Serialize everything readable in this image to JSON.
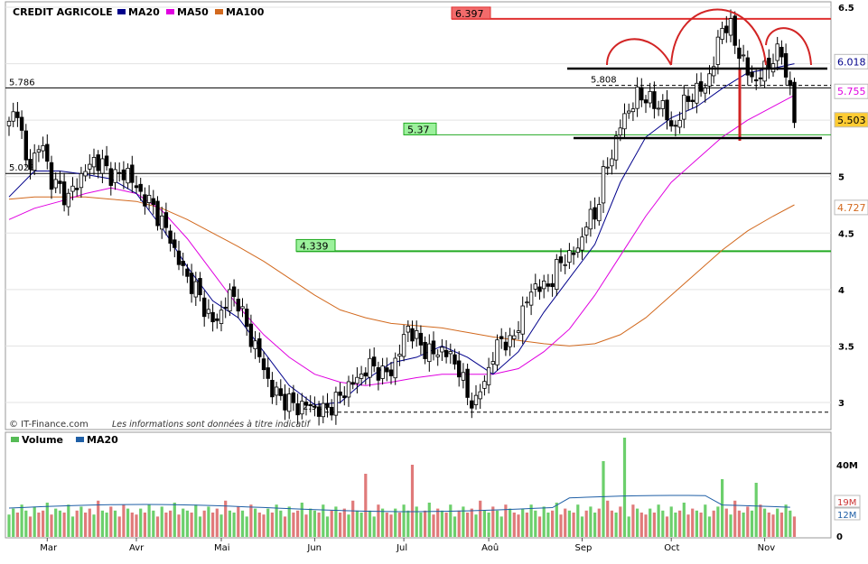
{
  "chart_data": {
    "type": "candlestick",
    "title": "CREDIT AGRICOLE",
    "legend": [
      {
        "label": "MA20",
        "color": "#00008b"
      },
      {
        "label": "MA50",
        "color": "#e000e0"
      },
      {
        "label": "MA100",
        "color": "#d2691e"
      }
    ],
    "price_axis": {
      "min": 2.85,
      "max": 6.5,
      "ticks": [
        "6.5",
        "6",
        "5.5",
        "5",
        "4.5",
        "4",
        "3.5",
        "3"
      ]
    },
    "months": [
      {
        "label": "Mar",
        "t": 9
      },
      {
        "label": "Avr",
        "t": 30
      },
      {
        "label": "Mai",
        "t": 50
      },
      {
        "label": "Jun",
        "t": 72
      },
      {
        "label": "Jul",
        "t": 93
      },
      {
        "label": "Aoû",
        "t": 113
      },
      {
        "label": "Sep",
        "t": 135
      },
      {
        "label": "Oct",
        "t": 156
      },
      {
        "label": "Nov",
        "t": 178
      }
    ],
    "close_points": [
      [
        0,
        5.45
      ],
      [
        2,
        5.62
      ],
      [
        4,
        5.1
      ],
      [
        6,
        5.18
      ],
      [
        8,
        5.28
      ],
      [
        10,
        4.95
      ],
      [
        12,
        4.9
      ],
      [
        14,
        4.8
      ],
      [
        16,
        4.95
      ],
      [
        18,
        5.05
      ],
      [
        20,
        5.15
      ],
      [
        22,
        5.1
      ],
      [
        24,
        5.02
      ],
      [
        26,
        5.0
      ],
      [
        28,
        5.05
      ],
      [
        30,
        4.88
      ],
      [
        32,
        4.82
      ],
      [
        34,
        4.72
      ],
      [
        36,
        4.6
      ],
      [
        38,
        4.45
      ],
      [
        40,
        4.25
      ],
      [
        42,
        4.1
      ],
      [
        44,
        4.0
      ],
      [
        46,
        3.85
      ],
      [
        48,
        3.7
      ],
      [
        50,
        3.8
      ],
      [
        52,
        3.95
      ],
      [
        54,
        3.9
      ],
      [
        56,
        3.65
      ],
      [
        58,
        3.5
      ],
      [
        60,
        3.3
      ],
      [
        62,
        3.1
      ],
      [
        64,
        3.05
      ],
      [
        66,
        3.0
      ],
      [
        68,
        2.96
      ],
      [
        70,
        2.98
      ],
      [
        72,
        2.95
      ],
      [
        74,
        2.92
      ],
      [
        76,
        2.98
      ],
      [
        78,
        3.05
      ],
      [
        80,
        3.15
      ],
      [
        82,
        3.2
      ],
      [
        84,
        3.3
      ],
      [
        86,
        3.32
      ],
      [
        88,
        3.25
      ],
      [
        90,
        3.28
      ],
      [
        92,
        3.45
      ],
      [
        94,
        3.68
      ],
      [
        96,
        3.55
      ],
      [
        98,
        3.47
      ],
      [
        100,
        3.43
      ],
      [
        102,
        3.47
      ],
      [
        104,
        3.4
      ],
      [
        106,
        3.3
      ],
      [
        108,
        3.05
      ],
      [
        110,
        3.0
      ],
      [
        112,
        3.2
      ],
      [
        114,
        3.4
      ],
      [
        116,
        3.58
      ],
      [
        118,
        3.5
      ],
      [
        120,
        3.7
      ],
      [
        122,
        3.9
      ],
      [
        124,
        4.05
      ],
      [
        126,
        4.0
      ],
      [
        128,
        4.1
      ],
      [
        130,
        4.25
      ],
      [
        132,
        4.3
      ],
      [
        134,
        4.35
      ],
      [
        136,
        4.6
      ],
      [
        138,
        4.65
      ],
      [
        140,
        5.0
      ],
      [
        142,
        5.2
      ],
      [
        144,
        5.45
      ],
      [
        146,
        5.6
      ],
      [
        148,
        5.7
      ],
      [
        150,
        5.72
      ],
      [
        152,
        5.62
      ],
      [
        154,
        5.65
      ],
      [
        156,
        5.4
      ],
      [
        158,
        5.55
      ],
      [
        160,
        5.7
      ],
      [
        162,
        5.75
      ],
      [
        164,
        5.8
      ],
      [
        166,
        6.0
      ],
      [
        168,
        6.35
      ],
      [
        170,
        6.3
      ],
      [
        172,
        6.1
      ],
      [
        174,
        5.92
      ],
      [
        176,
        5.85
      ],
      [
        178,
        5.95
      ],
      [
        180,
        6.05
      ],
      [
        182,
        6.1
      ],
      [
        184,
        5.75
      ],
      [
        185,
        5.5
      ]
    ],
    "ma20_points": [
      [
        0,
        4.82
      ],
      [
        6,
        5.05
      ],
      [
        12,
        5.05
      ],
      [
        18,
        5.02
      ],
      [
        24,
        4.98
      ],
      [
        30,
        4.85
      ],
      [
        36,
        4.55
      ],
      [
        42,
        4.2
      ],
      [
        48,
        3.9
      ],
      [
        54,
        3.75
      ],
      [
        60,
        3.45
      ],
      [
        66,
        3.15
      ],
      [
        72,
        2.98
      ],
      [
        78,
        3.0
      ],
      [
        84,
        3.2
      ],
      [
        90,
        3.35
      ],
      [
        96,
        3.4
      ],
      [
        102,
        3.5
      ],
      [
        108,
        3.4
      ],
      [
        114,
        3.25
      ],
      [
        120,
        3.45
      ],
      [
        126,
        3.8
      ],
      [
        132,
        4.1
      ],
      [
        138,
        4.4
      ],
      [
        144,
        4.95
      ],
      [
        150,
        5.35
      ],
      [
        156,
        5.52
      ],
      [
        162,
        5.62
      ],
      [
        168,
        5.78
      ],
      [
        174,
        5.92
      ],
      [
        180,
        5.96
      ],
      [
        185,
        6.0
      ]
    ],
    "ma50_points": [
      [
        0,
        4.62
      ],
      [
        6,
        4.72
      ],
      [
        12,
        4.78
      ],
      [
        18,
        4.85
      ],
      [
        24,
        4.9
      ],
      [
        30,
        4.85
      ],
      [
        36,
        4.7
      ],
      [
        42,
        4.45
      ],
      [
        48,
        4.15
      ],
      [
        54,
        3.85
      ],
      [
        60,
        3.6
      ],
      [
        66,
        3.4
      ],
      [
        72,
        3.25
      ],
      [
        78,
        3.18
      ],
      [
        84,
        3.15
      ],
      [
        90,
        3.18
      ],
      [
        96,
        3.22
      ],
      [
        102,
        3.25
      ],
      [
        108,
        3.25
      ],
      [
        114,
        3.25
      ],
      [
        120,
        3.3
      ],
      [
        126,
        3.45
      ],
      [
        132,
        3.65
      ],
      [
        138,
        3.95
      ],
      [
        144,
        4.3
      ],
      [
        150,
        4.65
      ],
      [
        156,
        4.95
      ],
      [
        162,
        5.15
      ],
      [
        168,
        5.35
      ],
      [
        174,
        5.5
      ],
      [
        180,
        5.62
      ],
      [
        185,
        5.72
      ]
    ],
    "ma100_points": [
      [
        0,
        4.8
      ],
      [
        6,
        4.82
      ],
      [
        12,
        4.82
      ],
      [
        18,
        4.82
      ],
      [
        24,
        4.8
      ],
      [
        30,
        4.78
      ],
      [
        36,
        4.72
      ],
      [
        42,
        4.62
      ],
      [
        48,
        4.5
      ],
      [
        54,
        4.38
      ],
      [
        60,
        4.25
      ],
      [
        66,
        4.1
      ],
      [
        72,
        3.95
      ],
      [
        78,
        3.82
      ],
      [
        84,
        3.75
      ],
      [
        90,
        3.7
      ],
      [
        96,
        3.68
      ],
      [
        102,
        3.66
      ],
      [
        108,
        3.62
      ],
      [
        114,
        3.58
      ],
      [
        120,
        3.55
      ],
      [
        126,
        3.52
      ],
      [
        132,
        3.5
      ],
      [
        138,
        3.52
      ],
      [
        144,
        3.6
      ],
      [
        150,
        3.75
      ],
      [
        156,
        3.95
      ],
      [
        162,
        4.15
      ],
      [
        168,
        4.35
      ],
      [
        174,
        4.52
      ],
      [
        180,
        4.65
      ],
      [
        185,
        4.75
      ]
    ],
    "volume_pattern": [
      4,
      7,
      5,
      9,
      6,
      3,
      8,
      5,
      6,
      10,
      4,
      7,
      6,
      5,
      9,
      3,
      6,
      8,
      5,
      7,
      4,
      11,
      6,
      5,
      8,
      6,
      3,
      9,
      7,
      5
    ],
    "levels": [
      {
        "value": 6.397,
        "label": "6.397",
        "kind": "resistance",
        "color": "#e03030"
      },
      {
        "value": 5.786,
        "label": "5.786",
        "kind": "line",
        "color": "#000000"
      },
      {
        "value": 5.808,
        "label": "5.808",
        "kind": "dashed",
        "color": "#000000"
      },
      {
        "value": 5.37,
        "label": "5.37",
        "kind": "support",
        "color": "#22aa22"
      },
      {
        "value": 5.028,
        "label": "5.028",
        "kind": "line",
        "color": "#000000"
      },
      {
        "value": 4.339,
        "label": "4.339",
        "kind": "support",
        "color": "#22aa22"
      },
      {
        "value": 2.914,
        "label": "2.914",
        "kind": "dashed",
        "color": "#000000"
      }
    ],
    "value_badges": [
      {
        "label": "6.018",
        "value": 6.018,
        "color": "#00008b",
        "fill": "#ffffff"
      },
      {
        "label": "5.755",
        "value": 5.755,
        "color": "#e000e0",
        "fill": "#ffffff"
      },
      {
        "label": "5.503",
        "value": 5.503,
        "color": "#000000",
        "fill": "#ffcc33"
      },
      {
        "label": "4.727",
        "value": 4.727,
        "color": "#d2691e",
        "fill": "#ffffff"
      }
    ],
    "footer": "© IT-Finance.com",
    "disclaimer": "Les informations sont données à titre indicatif",
    "volume_panel": {
      "legend": [
        {
          "label": "Volume",
          "color": "#55bb55"
        },
        {
          "label": "MA20",
          "color": "#1f5fa6"
        }
      ],
      "axis_labels": [
        "40M",
        "0"
      ],
      "badges": [
        {
          "label": "19M",
          "color": "#cc3333"
        },
        {
          "label": "12M",
          "color": "#1f5fa6"
        }
      ]
    }
  }
}
